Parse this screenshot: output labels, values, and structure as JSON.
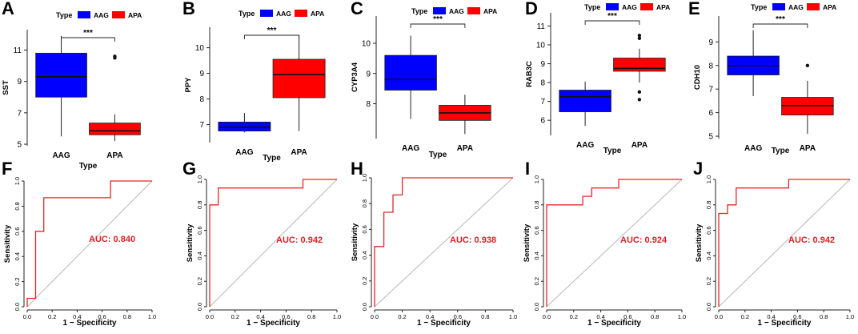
{
  "colors": {
    "aag": "#0000ff",
    "apa": "#ff0000",
    "roc_line": "#e8262a",
    "auc_text": "#dd1f26",
    "diagonal": "#b8b8b8"
  },
  "legend": {
    "title": "Type",
    "labels": [
      "AAG",
      "APA"
    ]
  },
  "chart_data": [
    {
      "panel": "A",
      "type": "box",
      "ylabel": "SST",
      "xlabel": "Type",
      "categories": [
        "AAG",
        "APA"
      ],
      "ylim": [
        4.9,
        12.3
      ],
      "yticks": [
        5,
        7,
        9,
        11
      ],
      "significance": "***",
      "boxes": [
        {
          "q1": 8.0,
          "median": 9.3,
          "q3": 10.8,
          "whisker_low": 5.5,
          "whisker_high": 11.9,
          "outliers": []
        },
        {
          "q1": 5.6,
          "median": 5.85,
          "q3": 6.35,
          "whisker_low": 5.2,
          "whisker_high": 6.9,
          "outliers": [
            10.5,
            10.6
          ]
        }
      ]
    },
    {
      "panel": "B",
      "type": "box",
      "ylabel": "PPY",
      "xlabel": "Type",
      "categories": [
        "AAG",
        "APA"
      ],
      "ylim": [
        6.3,
        10.8
      ],
      "yticks": [
        7,
        8,
        9,
        10
      ],
      "significance": "***",
      "boxes": [
        {
          "q1": 6.75,
          "median": 6.9,
          "q3": 7.1,
          "whisker_low": 6.7,
          "whisker_high": 7.45,
          "outliers": []
        },
        {
          "q1": 8.05,
          "median": 8.95,
          "q3": 9.55,
          "whisker_low": 6.75,
          "whisker_high": 10.5,
          "outliers": []
        }
      ]
    },
    {
      "panel": "C",
      "type": "box",
      "ylabel": "CYP3A4",
      "xlabel": "Type",
      "categories": [
        "AAG",
        "APA"
      ],
      "ylim": [
        6.85,
        10.9
      ],
      "yticks": [
        8,
        9,
        10
      ],
      "significance": "***",
      "boxes": [
        {
          "q1": 8.45,
          "median": 8.8,
          "q3": 9.6,
          "whisker_low": 7.5,
          "whisker_high": 10.25,
          "outliers": []
        },
        {
          "q1": 7.45,
          "median": 7.7,
          "q3": 7.95,
          "whisker_low": 7.0,
          "whisker_high": 8.3,
          "outliers": []
        }
      ]
    },
    {
      "panel": "D",
      "type": "box",
      "ylabel": "RAB3C",
      "xlabel": "Type",
      "categories": [
        "AAG",
        "APA"
      ],
      "ylim": [
        5.2,
        11.7
      ],
      "yticks": [
        6,
        7,
        8,
        9,
        10,
        11
      ],
      "significance": "***",
      "boxes": [
        {
          "q1": 6.45,
          "median": 7.25,
          "q3": 7.6,
          "whisker_low": 5.7,
          "whisker_high": 8.05,
          "outliers": []
        },
        {
          "q1": 8.6,
          "median": 8.75,
          "q3": 9.3,
          "whisker_low": 8.0,
          "whisker_high": 9.8,
          "outliers": [
            10.35,
            10.5,
            7.5,
            7.1
          ]
        }
      ]
    },
    {
      "panel": "E",
      "type": "box",
      "ylabel": "CDH10",
      "xlabel": "Type",
      "categories": [
        "AAG",
        "APA"
      ],
      "ylim": [
        4.9,
        10.1
      ],
      "yticks": [
        5,
        6,
        7,
        8,
        9
      ],
      "significance": "***",
      "boxes": [
        {
          "q1": 7.6,
          "median": 8.0,
          "q3": 8.4,
          "whisker_low": 6.7,
          "whisker_high": 9.5,
          "outliers": []
        },
        {
          "q1": 5.9,
          "median": 6.3,
          "q3": 6.65,
          "whisker_low": 5.1,
          "whisker_high": 7.35,
          "outliers": [
            8.0
          ]
        }
      ]
    },
    {
      "panel": "F",
      "type": "line",
      "xlabel": "1 − Specificity",
      "ylabel": "Sensitivity",
      "auc_label": "AUC: 0.840",
      "xticks": [
        "0.0",
        "0.2",
        "0.4",
        "0.6",
        "0.8",
        "1.0"
      ],
      "yticks": [
        "0.0",
        "0.2",
        "0.4",
        "0.6",
        "0.8",
        "1.0"
      ],
      "x": [
        0,
        0,
        0.067,
        0.067,
        0.133,
        0.133,
        0.667,
        0.667,
        1
      ],
      "y": [
        0,
        0.067,
        0.067,
        0.6,
        0.6,
        0.867,
        0.867,
        1,
        1
      ]
    },
    {
      "panel": "G",
      "type": "line",
      "xlabel": "1 − Specificity",
      "ylabel": "Sensitivity",
      "auc_label": "AUC: 0.942",
      "xticks": [
        "0.0",
        "0.2",
        "0.4",
        "0.6",
        "0.8",
        "1.0"
      ],
      "yticks": [
        "0.0",
        "0.2",
        "0.4",
        "0.6",
        "0.8",
        "1.0"
      ],
      "x": [
        0,
        0,
        0.067,
        0.067,
        0.733,
        0.733,
        1
      ],
      "y": [
        0,
        0.8,
        0.8,
        0.933,
        0.933,
        1,
        1
      ]
    },
    {
      "panel": "H",
      "type": "line",
      "xlabel": "1 − Specificity",
      "ylabel": "Sensitivity",
      "auc_label": "AUC: 0.938",
      "xticks": [
        "0.0",
        "0.2",
        "0.4",
        "0.6",
        "0.8",
        "1.0"
      ],
      "yticks": [
        "0.0",
        "0.2",
        "0.4",
        "0.6",
        "0.8",
        "1.0"
      ],
      "x": [
        0,
        0,
        0.067,
        0.067,
        0.133,
        0.133,
        0.2,
        0.2,
        1
      ],
      "y": [
        0,
        0.467,
        0.467,
        0.733,
        0.733,
        0.867,
        0.867,
        1,
        1
      ]
    },
    {
      "panel": "I",
      "type": "line",
      "xlabel": "1 − Specificity",
      "ylabel": "Sensitivity",
      "auc_label": "AUC: 0.924",
      "xticks": [
        "0.0",
        "0.2",
        "0.4",
        "0.6",
        "0.8",
        "1.0"
      ],
      "yticks": [
        "0.0",
        "0.2",
        "0.4",
        "0.6",
        "0.8",
        "1.0"
      ],
      "x": [
        0,
        0,
        0.267,
        0.267,
        0.333,
        0.333,
        0.533,
        0.533,
        1
      ],
      "y": [
        0,
        0.8,
        0.8,
        0.867,
        0.867,
        0.933,
        0.933,
        1,
        1
      ]
    },
    {
      "panel": "J",
      "type": "line",
      "xlabel": "1 − Specificity",
      "ylabel": "Sensitivity",
      "auc_label": "AUC: 0.942",
      "xticks": [
        "0.0",
        "0.2",
        "0.4",
        "0.6",
        "0.8",
        "1.0"
      ],
      "yticks": [
        "0.0",
        "0.2",
        "0.4",
        "0.6",
        "0.8",
        "1.0"
      ],
      "x": [
        0,
        0,
        0.067,
        0.067,
        0.133,
        0.133,
        0.533,
        0.533,
        1
      ],
      "y": [
        0,
        0.733,
        0.733,
        0.8,
        0.8,
        0.933,
        0.933,
        1,
        1
      ]
    }
  ]
}
